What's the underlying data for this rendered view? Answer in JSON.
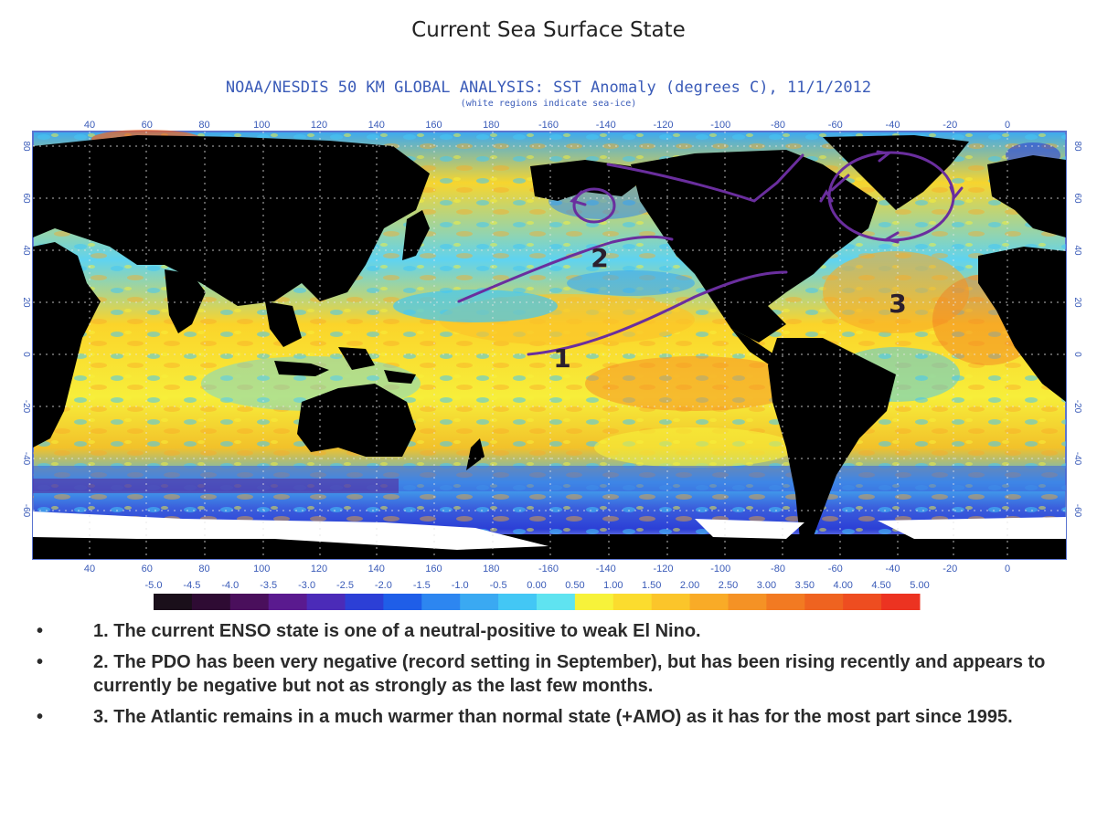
{
  "slide": {
    "title": "Current Sea Surface State"
  },
  "map": {
    "header": "NOAA/NESDIS 50 KM GLOBAL ANALYSIS: SST Anomaly (degrees C), 11/1/2012",
    "subheader": "(white regions indicate sea-ice)",
    "longitude_ticks": [
      "40",
      "60",
      "80",
      "100",
      "120",
      "140",
      "160",
      "180",
      "-160",
      "-140",
      "-120",
      "-100",
      "-80",
      "-60",
      "-40",
      "-20",
      "0"
    ],
    "latitude_ticks": [
      "80",
      "60",
      "40",
      "20",
      "0",
      "-20",
      "-40",
      "-60"
    ],
    "annotations": [
      {
        "id": "1",
        "label": "1"
      },
      {
        "id": "2",
        "label": "2"
      },
      {
        "id": "3",
        "label": "3"
      }
    ],
    "annotation_color": "#6a2e9e"
  },
  "colorbar": {
    "labels": [
      "-5.0",
      "-4.5",
      "-4.0",
      "-3.5",
      "-3.0",
      "-2.5",
      "-2.0",
      "-1.5",
      "-1.0",
      "-0.5",
      "0.00",
      "0.50",
      "1.00",
      "1.50",
      "2.00",
      "2.50",
      "3.00",
      "3.50",
      "4.00",
      "4.50",
      "5.00"
    ],
    "colors": [
      "#1a0f1a",
      "#2e0b33",
      "#4a0f5c",
      "#5a1a8f",
      "#4b2bb8",
      "#2c3fd6",
      "#1f5ee8",
      "#2d86f0",
      "#3aa9f2",
      "#43c7f5",
      "#5fe3f0",
      "#f7f23a",
      "#fbdc2e",
      "#fbc52a",
      "#f9ab27",
      "#f59225",
      "#f27a22",
      "#ef6320",
      "#ee4d20",
      "#ec3321"
    ]
  },
  "notes": [
    {
      "bullet": "•",
      "text": "1. The current ENSO state is one of a neutral-positive to weak El Nino."
    },
    {
      "bullet": "•",
      "text": "2. The PDO has been very negative (record setting in September), but has been rising recently and appears to currently be negative but not as strongly as the last few months."
    },
    {
      "bullet": "•",
      "text": "3. The Atlantic remains in a much warmer than normal state (+AMO) as it has for the most part since 1995."
    }
  ]
}
